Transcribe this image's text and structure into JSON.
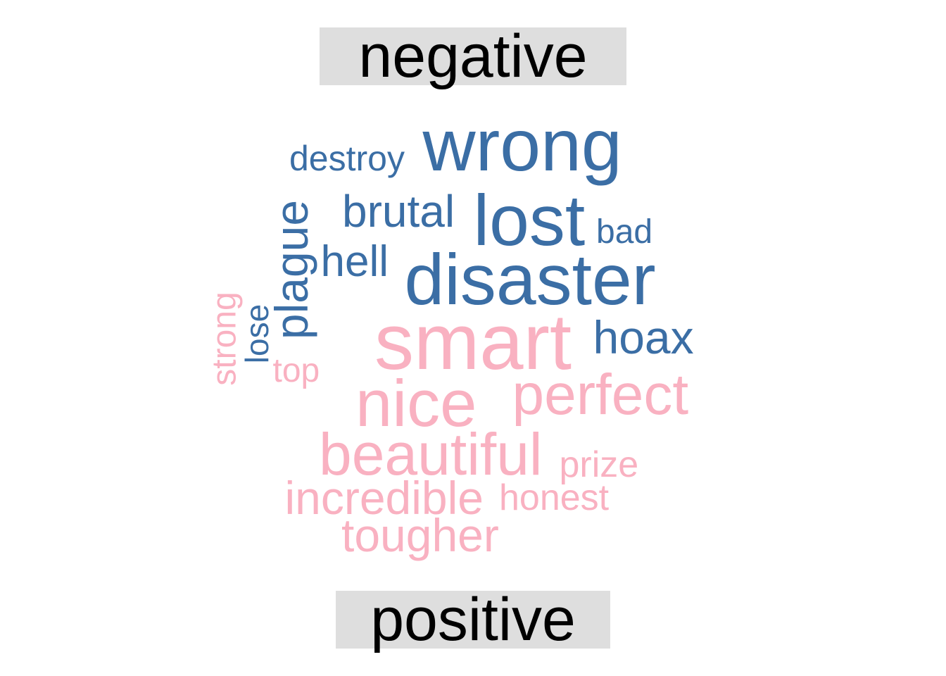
{
  "chart_data": {
    "type": "wordcloud",
    "groups": [
      {
        "name": "negative",
        "color": "#3b6ea5",
        "words": [
          "wrong",
          "destroy",
          "brutal",
          "lost",
          "bad",
          "plague",
          "hell",
          "disaster",
          "hoax",
          "lose"
        ]
      },
      {
        "name": "positive",
        "color": "#f9b1c1",
        "words": [
          "smart",
          "strong",
          "top",
          "nice",
          "perfect",
          "beautiful",
          "prize",
          "incredible",
          "honest",
          "tougher"
        ]
      }
    ]
  }
}
